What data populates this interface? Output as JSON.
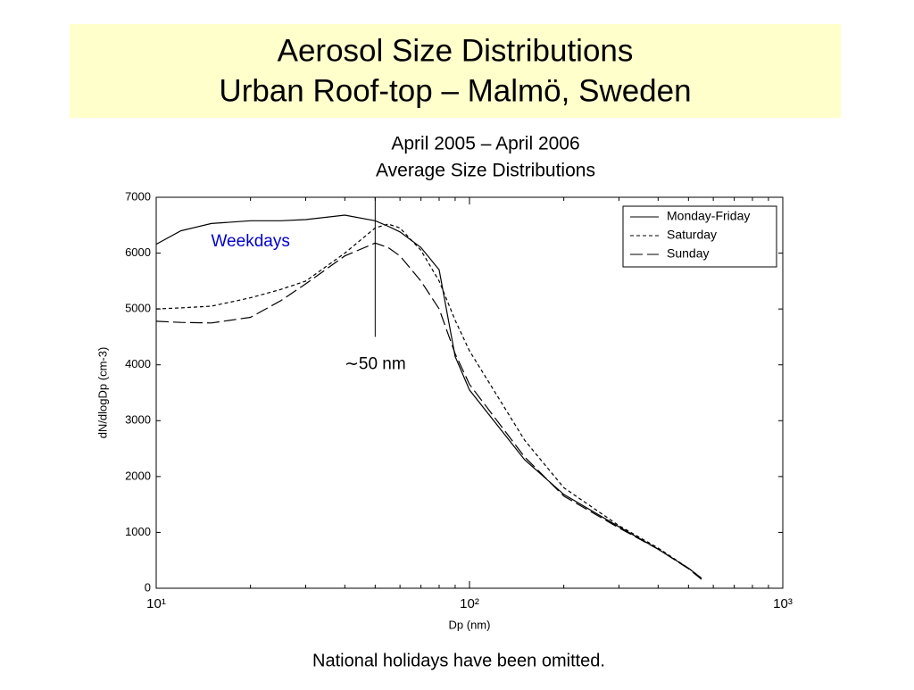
{
  "header": {
    "title_lines": [
      "Aerosol Size Distributions",
      "Urban Roof-top – Malmö, Sweden"
    ]
  },
  "chart_data": {
    "type": "line",
    "subtitle_lines": [
      "April 2005 – April 2006",
      "Average Size Distributions"
    ],
    "x_label": "Dp (nm)",
    "y_label": "dN/dlogDp (cm-3)",
    "log_x": true,
    "xlim": [
      10,
      1000
    ],
    "xticks": [
      {
        "value": 10,
        "label": "10¹"
      },
      {
        "value": 100,
        "label": "10²"
      },
      {
        "value": 1000,
        "label": "10³"
      }
    ],
    "xminorticks": [
      20,
      30,
      40,
      50,
      60,
      70,
      80,
      90,
      200,
      300,
      400,
      500,
      600,
      700,
      800,
      900
    ],
    "ylim": [
      0,
      7000
    ],
    "yticks": [
      0,
      1000,
      2000,
      3000,
      4000,
      5000,
      6000,
      7000
    ],
    "legend": "top-right",
    "x": [
      10,
      12,
      15,
      20,
      25,
      30,
      40,
      50,
      55,
      60,
      70,
      80,
      90,
      100,
      150,
      200,
      300,
      400,
      500,
      550
    ],
    "series": [
      {
        "name": "Monday-Friday",
        "color": "#000000",
        "linestyle": "solid",
        "values": [
          6160,
          6400,
          6530,
          6580,
          6580,
          6600,
          6680,
          6580,
          6480,
          6380,
          6100,
          5700,
          4150,
          3550,
          2300,
          1680,
          1100,
          700,
          360,
          180
        ]
      },
      {
        "name": "Saturday",
        "color": "#000000",
        "linestyle": "dotted",
        "values": [
          5000,
          5020,
          5050,
          5200,
          5350,
          5500,
          6000,
          6450,
          6520,
          6450,
          6050,
          5500,
          4800,
          4250,
          2650,
          1800,
          1120,
          720,
          360,
          180
        ]
      },
      {
        "name": "Sunday",
        "color": "#000000",
        "linestyle": "dashed",
        "values": [
          4780,
          4760,
          4750,
          4850,
          5150,
          5450,
          5950,
          6180,
          6100,
          5950,
          5500,
          5000,
          4200,
          3650,
          2350,
          1650,
          1080,
          700,
          350,
          160
        ]
      }
    ],
    "annotations": [
      {
        "text": "Weekdays",
        "x": 20,
        "y": 6200,
        "color": "#0000cc"
      },
      {
        "text": "∼50 nm",
        "x": 50,
        "y": 4000,
        "color": "#000000"
      }
    ],
    "vline": {
      "x": 50,
      "ymin": 4500
    },
    "footnote": "National holidays have been omitted."
  }
}
